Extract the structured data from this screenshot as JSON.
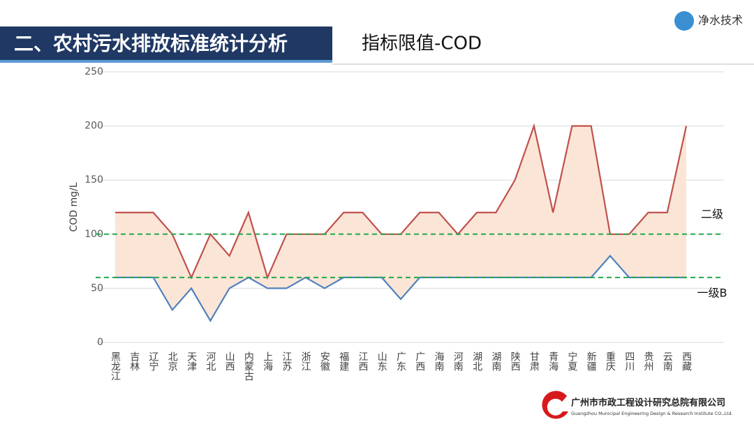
{
  "header": {
    "title": "二、农村污水排放标准统计分析",
    "subtitle": "指标限值-COD",
    "logo": "净水技术",
    "company": "广州市市政工程设计研究总院有限公司",
    "company_en": "Guangzhou Municipal Engineering Design & Research Institute CO.,Ltd."
  },
  "chart_data": {
    "type": "line",
    "y_label": "COD mg/L",
    "categories": [
      "黑龙江",
      "吉林",
      "辽宁",
      "北京",
      "天津",
      "河北",
      "山西",
      "内蒙古",
      "上海",
      "江苏",
      "浙江",
      "安徽",
      "福建",
      "江西",
      "山东",
      "广东",
      "广西",
      "海南",
      "河南",
      "湖北",
      "湖南",
      "陕西",
      "甘肃",
      "青海",
      "宁夏",
      "新疆",
      "重庆",
      "四川",
      "贵州",
      "云南",
      "西藏"
    ],
    "series": [
      {
        "color": "#c0504d",
        "values": [
          120,
          120,
          120,
          100,
          60,
          100,
          80,
          120,
          60,
          100,
          100,
          100,
          120,
          120,
          100,
          100,
          120,
          120,
          100,
          120,
          120,
          150,
          200,
          120,
          200,
          200,
          100,
          100,
          120,
          120,
          200
        ]
      },
      {
        "color": "#4f81bd",
        "values": [
          60,
          60,
          60,
          30,
          50,
          20,
          50,
          60,
          50,
          50,
          60,
          50,
          60,
          60,
          60,
          40,
          60,
          60,
          60,
          60,
          60,
          60,
          60,
          60,
          60,
          60,
          80,
          60,
          60,
          60,
          60
        ]
      }
    ],
    "band_fill": "#fbe5d6",
    "ylim": [
      0,
      250
    ],
    "yticks": [
      0,
      50,
      100,
      150,
      200,
      250
    ],
    "reference_lines": [
      {
        "value": 100,
        "label": "二级",
        "color": "#22a84a"
      },
      {
        "value": 60,
        "label": "一级B",
        "color": "#22a84a"
      }
    ]
  }
}
